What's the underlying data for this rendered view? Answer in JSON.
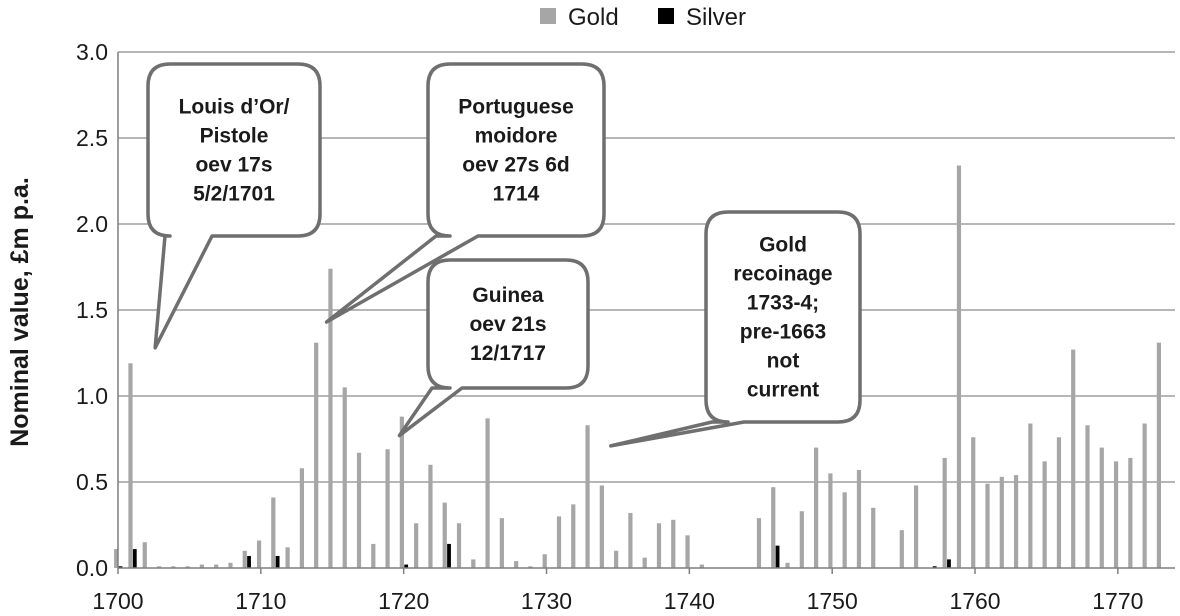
{
  "chart_data": {
    "type": "bar",
    "title": "",
    "xlabel": "",
    "ylabel": "Nominal value, £m p.a.",
    "xlim": [
      1700,
      1774
    ],
    "ylim": [
      0,
      3.0
    ],
    "xticks": [
      1700,
      1710,
      1720,
      1730,
      1740,
      1750,
      1760,
      1770
    ],
    "yticks": [
      "0.0",
      "0.5",
      "1.0",
      "1.5",
      "2.0",
      "2.5",
      "3.0"
    ],
    "grid": true,
    "legend_position": "top-center",
    "x": [
      1700,
      1701,
      1702,
      1703,
      1704,
      1705,
      1706,
      1707,
      1708,
      1709,
      1710,
      1711,
      1712,
      1713,
      1714,
      1715,
      1716,
      1717,
      1718,
      1719,
      1720,
      1721,
      1722,
      1723,
      1724,
      1725,
      1726,
      1727,
      1728,
      1729,
      1730,
      1731,
      1732,
      1733,
      1734,
      1735,
      1736,
      1737,
      1738,
      1739,
      1740,
      1741,
      1742,
      1743,
      1744,
      1745,
      1746,
      1747,
      1748,
      1749,
      1750,
      1751,
      1752,
      1753,
      1754,
      1755,
      1756,
      1757,
      1758,
      1759,
      1760,
      1761,
      1762,
      1763,
      1764,
      1765,
      1766,
      1767,
      1768,
      1769,
      1770,
      1771,
      1772,
      1773
    ],
    "series": [
      {
        "name": "Gold",
        "color": "#a6a6a6",
        "values": [
          0.11,
          1.19,
          0.15,
          0.01,
          0.01,
          0.01,
          0.02,
          0.02,
          0.03,
          0.1,
          0.16,
          0.41,
          0.12,
          0.58,
          1.31,
          1.74,
          1.05,
          0.67,
          0.14,
          0.69,
          0.88,
          0.26,
          0.6,
          0.38,
          0.26,
          0.05,
          0.87,
          0.29,
          0.04,
          0.01,
          0.08,
          0.3,
          0.37,
          0.83,
          0.48,
          0.1,
          0.32,
          0.06,
          0.26,
          0.28,
          0.19,
          0.02,
          0.0,
          0.0,
          0.0,
          0.29,
          0.47,
          0.03,
          0.33,
          0.7,
          0.55,
          0.44,
          0.57,
          0.35,
          0.0,
          0.22,
          0.48,
          0.0,
          0.64,
          2.34,
          0.76,
          0.49,
          0.53,
          0.54,
          0.84,
          0.62,
          0.76,
          1.27,
          0.83,
          0.7,
          0.62,
          0.64,
          0.84,
          1.31
        ]
      },
      {
        "name": "Silver",
        "color": "#000000",
        "values": [
          0.01,
          0.11,
          0.0,
          0.0,
          0.0,
          0.0,
          0.0,
          0.0,
          0.0,
          0.07,
          0.0,
          0.07,
          0.0,
          0.0,
          0.0,
          0.0,
          0.0,
          0.0,
          0.0,
          0.0,
          0.02,
          0.0,
          0.0,
          0.14,
          0.0,
          0.0,
          0.0,
          0.0,
          0.0,
          0.0,
          0.0,
          0.0,
          0.0,
          0.0,
          0.0,
          0.0,
          0.0,
          0.0,
          0.0,
          0.0,
          0.0,
          0.0,
          0.0,
          0.0,
          0.0,
          0.0,
          0.13,
          0.0,
          0.0,
          0.0,
          0.0,
          0.0,
          0.0,
          0.0,
          0.0,
          0.0,
          0.0,
          0.01,
          0.05,
          0.0,
          0.0,
          0.0,
          0.0,
          0.0,
          0.0,
          0.0,
          0.0,
          0.0,
          0.0,
          0.0,
          0.0,
          0.0,
          0.0,
          0.0
        ]
      }
    ],
    "annotations": [
      {
        "lines": [
          "Louis d’Or/",
          "Pistole",
          "oev 17s",
          "5/2/1701"
        ],
        "pointer_x": 1702.6,
        "pointer_y": 1.28
      },
      {
        "lines": [
          "Portuguese",
          "moidore",
          "oev 27s 6d",
          "1714"
        ],
        "pointer_x": 1714.6,
        "pointer_y": 1.43
      },
      {
        "lines": [
          "Guinea",
          "oev 21s",
          "12/1717"
        ],
        "pointer_x": 1719.7,
        "pointer_y": 0.77
      },
      {
        "lines": [
          "Gold",
          "recoinage",
          "1733-4;",
          "pre-1663",
          "not",
          "current"
        ],
        "pointer_x": 1734.5,
        "pointer_y": 0.71
      }
    ]
  }
}
